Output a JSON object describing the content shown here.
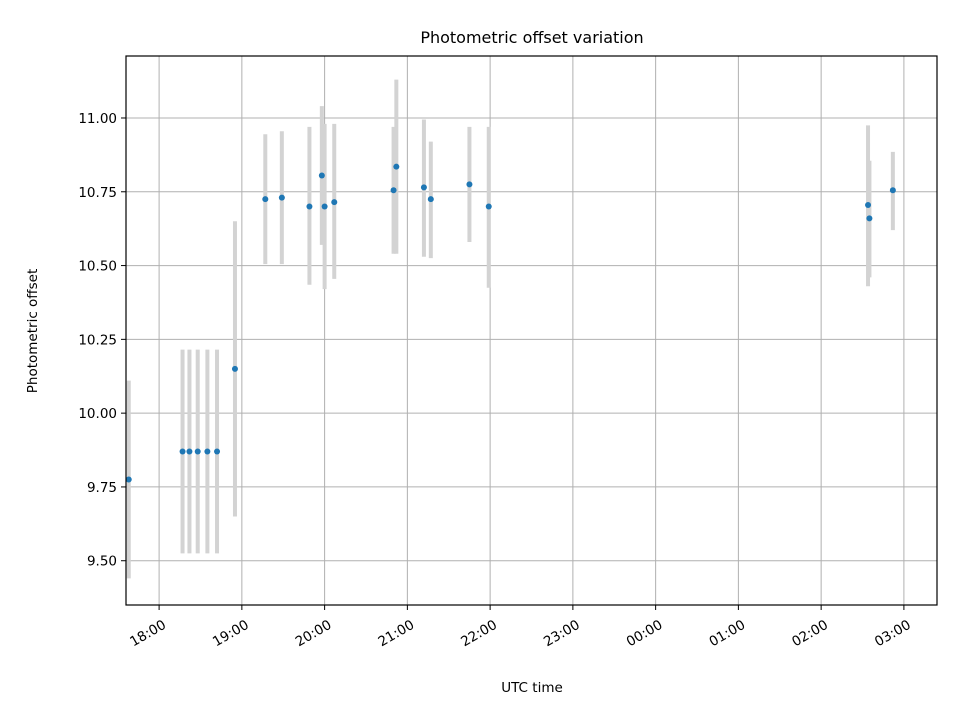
{
  "chart_data": {
    "type": "scatter",
    "title": "Photometric offset variation",
    "xlabel": "UTC time",
    "ylabel": "Photometric offset",
    "x_ticks": [
      "18:00",
      "19:00",
      "20:00",
      "21:00",
      "22:00",
      "23:00",
      "00:00",
      "01:00",
      "02:00",
      "03:00"
    ],
    "y_ticks": [
      "9.50",
      "9.75",
      "10.00",
      "10.25",
      "10.50",
      "10.75",
      "11.00"
    ],
    "xlim": [
      "17:36",
      "03:24"
    ],
    "ylim": [
      9.35,
      11.21
    ],
    "grid": true,
    "colors": {
      "points": "#1f77b4",
      "errorbars": "#d3d3d3",
      "grid": "#b0b0b0"
    },
    "points": [
      {
        "x": "17:38",
        "y": 9.775,
        "err_low": 9.44,
        "err_high": 10.11
      },
      {
        "x": "18:17",
        "y": 9.87,
        "err_low": 9.525,
        "err_high": 10.215
      },
      {
        "x": "18:22",
        "y": 9.87,
        "err_low": 9.525,
        "err_high": 10.215
      },
      {
        "x": "18:28",
        "y": 9.87,
        "err_low": 9.525,
        "err_high": 10.215
      },
      {
        "x": "18:35",
        "y": 9.87,
        "err_low": 9.525,
        "err_high": 10.215
      },
      {
        "x": "18:42",
        "y": 9.87,
        "err_low": 9.525,
        "err_high": 10.215
      },
      {
        "x": "18:55",
        "y": 10.15,
        "err_low": 9.65,
        "err_high": 10.65
      },
      {
        "x": "19:17",
        "y": 10.725,
        "err_low": 10.505,
        "err_high": 10.945
      },
      {
        "x": "19:29",
        "y": 10.73,
        "err_low": 10.505,
        "err_high": 10.955
      },
      {
        "x": "19:49",
        "y": 10.7,
        "err_low": 10.435,
        "err_high": 10.97
      },
      {
        "x": "19:58",
        "y": 10.805,
        "err_low": 10.57,
        "err_high": 11.04
      },
      {
        "x": "20:00",
        "y": 10.7,
        "err_low": 10.42,
        "err_high": 10.98
      },
      {
        "x": "20:07",
        "y": 10.715,
        "err_low": 10.455,
        "err_high": 10.98
      },
      {
        "x": "20:50",
        "y": 10.755,
        "err_low": 10.54,
        "err_high": 10.97
      },
      {
        "x": "20:52",
        "y": 10.835,
        "err_low": 10.54,
        "err_high": 11.13
      },
      {
        "x": "21:12",
        "y": 10.765,
        "err_low": 10.53,
        "err_high": 10.995
      },
      {
        "x": "21:17",
        "y": 10.725,
        "err_low": 10.525,
        "err_high": 10.92
      },
      {
        "x": "21:45",
        "y": 10.775,
        "err_low": 10.58,
        "err_high": 10.97
      },
      {
        "x": "21:59",
        "y": 10.7,
        "err_low": 10.425,
        "err_high": 10.97
      },
      {
        "x": "02:34",
        "y": 10.705,
        "err_low": 10.43,
        "err_high": 10.975
      },
      {
        "x": "02:35",
        "y": 10.66,
        "err_low": 10.46,
        "err_high": 10.855
      },
      {
        "x": "02:52",
        "y": 10.755,
        "err_low": 10.62,
        "err_high": 10.885
      }
    ]
  }
}
